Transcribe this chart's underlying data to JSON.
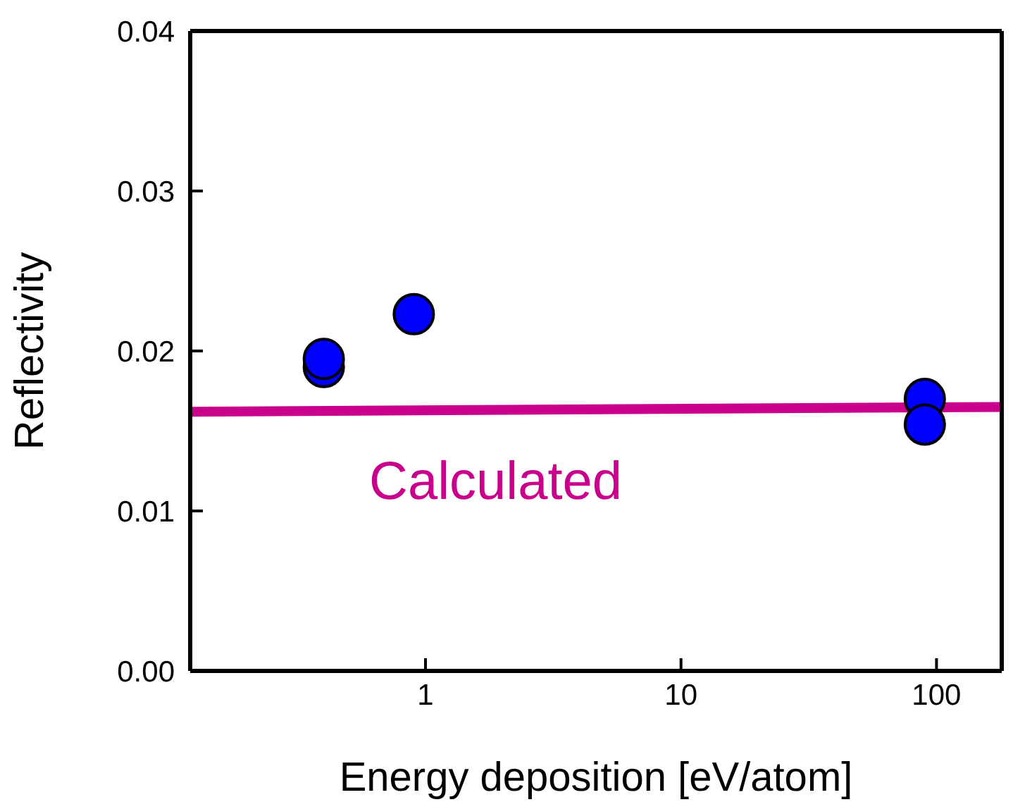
{
  "chart_data": {
    "type": "scatter",
    "xlabel": "Energy deposition [eV/atom]",
    "ylabel": "Reflectivity",
    "log": "x",
    "xlim": [
      0.12,
      180
    ],
    "xticks": [
      1,
      10,
      100
    ],
    "ylim": [
      0,
      0.04
    ],
    "yticks": [
      {
        "value": 0,
        "label": "0.00"
      },
      {
        "value": 0.01,
        "label": "0.01"
      },
      {
        "value": 0.02,
        "label": "0.02"
      },
      {
        "value": 0.03,
        "label": "0.03"
      },
      {
        "value": 0.04,
        "label": "0.04"
      }
    ],
    "grid": false,
    "legend": false,
    "series": [
      {
        "marker": "circle",
        "color": "#0000ff",
        "x": [
          0.4,
          0.4,
          0.9,
          90,
          90
        ],
        "values": [
          0.019,
          0.0195,
          0.0223,
          0.017,
          0.0154
        ]
      },
      {
        "type": "line",
        "color": "#c8008c",
        "line_style": "solid",
        "x": [
          0.12,
          180
        ],
        "values": [
          0.0162,
          0.0165
        ]
      }
    ],
    "annotations": [
      "Calculated"
    ]
  }
}
